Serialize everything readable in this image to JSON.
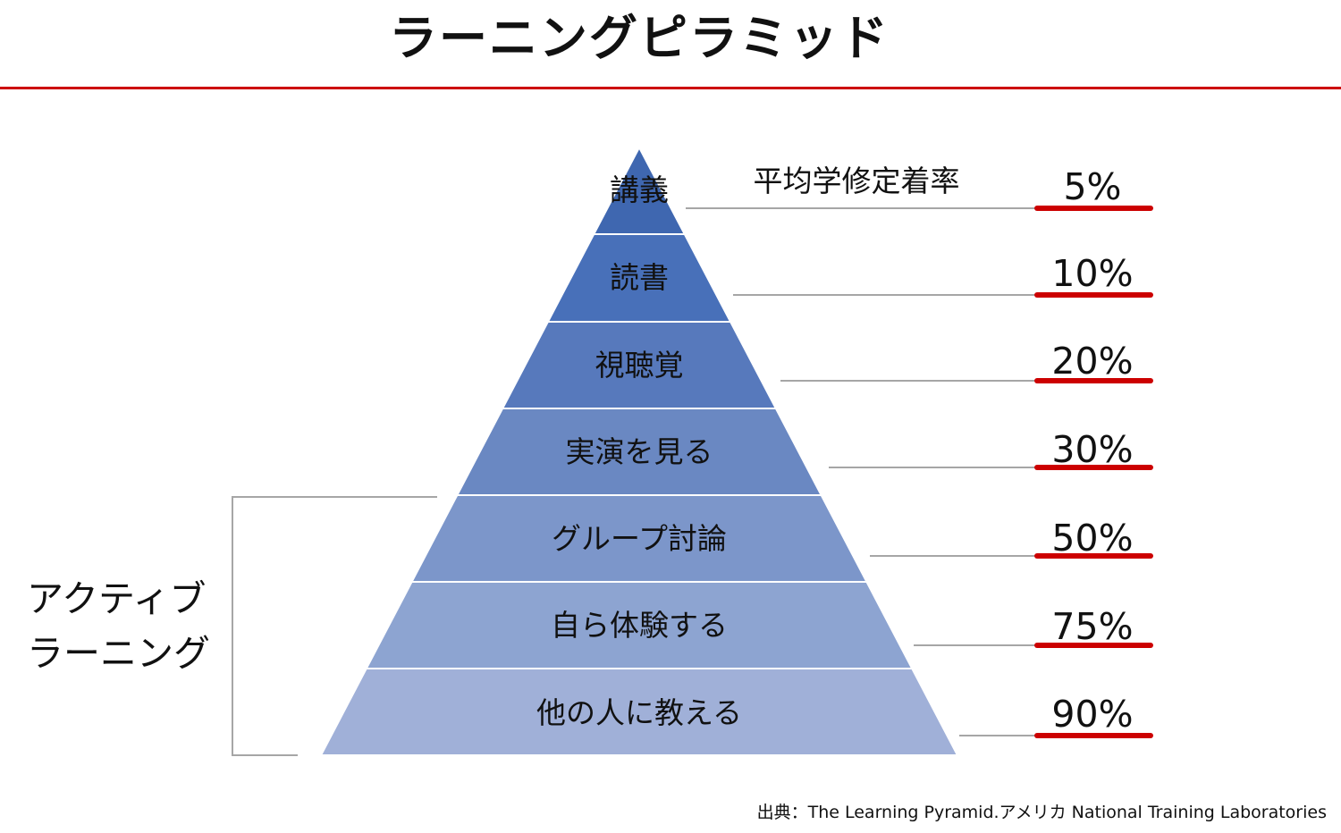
{
  "title": "ラーニングピラミッド",
  "retention_header": "平均学修定着率",
  "levels": [
    {
      "label": "講義",
      "retention": "5%"
    },
    {
      "label": "読書",
      "retention": "10%"
    },
    {
      "label": "視聴覚",
      "retention": "20%"
    },
    {
      "label": "実演を見る",
      "retention": "30%"
    },
    {
      "label": "グループ討論",
      "retention": "50%"
    },
    {
      "label": "自ら体験する",
      "retention": "75%"
    },
    {
      "label": "他の人に教える",
      "retention": "90%"
    }
  ],
  "active_learning_label": [
    "アクティブ",
    "ラーニング"
  ],
  "source": "出典：The Learning Pyramid.アメリカ National Training Laboratories",
  "colors": {
    "accent_red": "#cc0000",
    "tier_colors": [
      "#3f67b0",
      "#4870b9",
      "#5779bc",
      "#6a88c2",
      "#7c96ca",
      "#8da4d1",
      "#a0b0d8"
    ],
    "leader_line": "#a6a6a6",
    "bracket_line": "#a6a6a6"
  }
}
